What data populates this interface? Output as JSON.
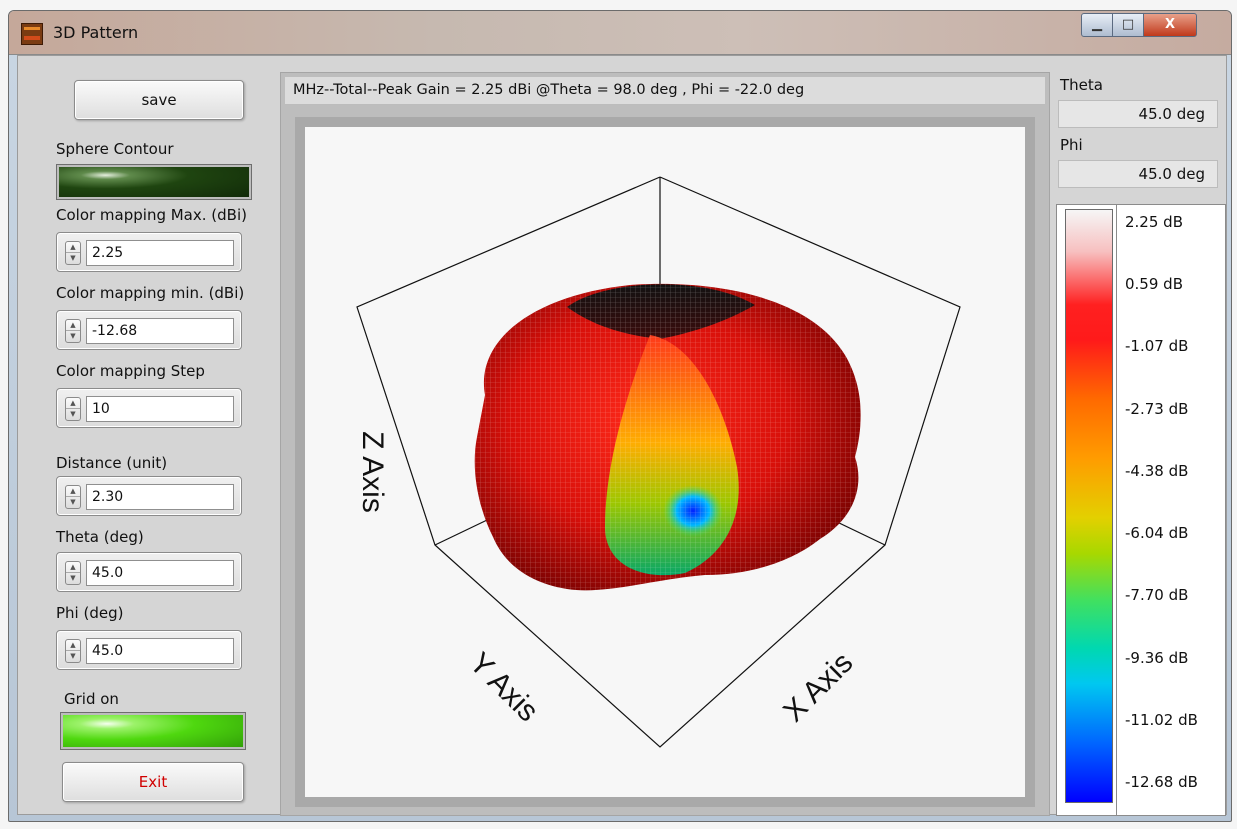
{
  "window": {
    "title": "3D Pattern",
    "minimize_glyph": "▁",
    "maximize_glyph": "□",
    "close_glyph": "X"
  },
  "left_panel": {
    "save_label": "save",
    "sphere_contour_label": "Sphere Contour",
    "color_max_label": "Color mapping Max. (dBi)",
    "color_max_value": "2.25",
    "color_min_label": "Color mapping min. (dBi)",
    "color_min_value": "-12.68",
    "color_step_label": "Color mapping Step",
    "color_step_value": "10",
    "distance_label": "Distance (unit)",
    "distance_value": "2.30",
    "theta_label": "Theta (deg)",
    "theta_value": "45.0",
    "phi_label": "Phi (deg)",
    "phi_value": "45.0",
    "grid_on_label": "Grid on",
    "exit_label": "Exit",
    "spin_up_glyph": "▲",
    "spin_down_glyph": "▼"
  },
  "plot": {
    "title": "MHz--Total--Peak Gain = 2.25 dBi @Theta = 98.0 deg , Phi = -22.0 deg",
    "x_axis_label": "X Axis",
    "y_axis_label": "Y Axis",
    "z_axis_label": "Z Axis"
  },
  "right_panel": {
    "theta_label": "Theta",
    "theta_value": "45.0 deg",
    "phi_label": "Phi",
    "phi_value": "45.0 deg",
    "colorbar_ticks": [
      "2.25 dB",
      "0.59 dB",
      "-1.07 dB",
      "-2.73 dB",
      "-4.38 dB",
      "-6.04 dB",
      "-7.70 dB",
      "-9.36 dB",
      "-11.02 dB",
      "-12.68 dB"
    ]
  },
  "colors": {
    "sphere_contour_led": "#1f4510",
    "grid_on_led": "#4fd80f",
    "exit_text": "#d00000"
  },
  "chart_data": {
    "type": "surface",
    "title": "MHz--Total--Peak Gain = 2.25 dBi @Theta = 98.0 deg , Phi = -22.0 deg",
    "xlabel": "X Axis",
    "ylabel": "Y Axis",
    "zlabel": "Z Axis",
    "peak_gain_dbi": 2.25,
    "peak_theta_deg": 98.0,
    "peak_phi_deg": -22.0,
    "color_range_db": [
      -12.68,
      2.25
    ],
    "colorbar_ticks_db": [
      2.25,
      0.59,
      -1.07,
      -2.73,
      -4.38,
      -6.04,
      -7.7,
      -9.36,
      -11.02,
      -12.68
    ],
    "view_theta_deg": 45.0,
    "view_phi_deg": 45.0,
    "grid": "on"
  }
}
